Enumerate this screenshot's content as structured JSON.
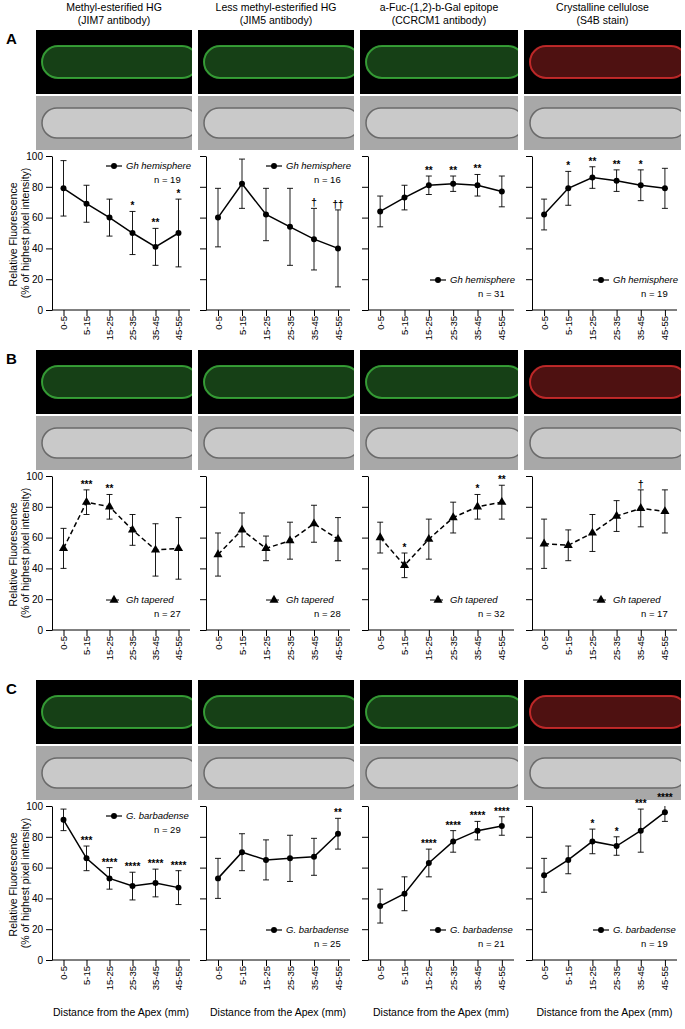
{
  "chart_data": [
    {
      "type": "line",
      "panel_label": "A",
      "title": "Methyl-esterified HG",
      "subtitle": "(JIM7 antibody)",
      "ylabel": "Relative Fluorescence (% of highest pixel intensity)",
      "annotation": "n = 19",
      "legend": "top-right",
      "tick_labels": true,
      "categories": [
        "0-5",
        "5-15",
        "15-25",
        "25-35",
        "35-45",
        "45-55"
      ],
      "ylim": [
        0,
        100
      ],
      "yticks": [
        0,
        20,
        40,
        60,
        80,
        100
      ],
      "series": [
        {
          "name": "Gh hemisphere",
          "color": "#000000",
          "marker": "circle",
          "line_style": "solid",
          "values": [
            79,
            69,
            60,
            50,
            41,
            50
          ],
          "errors": [
            18,
            12,
            12,
            14,
            12,
            22
          ],
          "significance": [
            null,
            null,
            null,
            "*",
            "**",
            "*"
          ]
        }
      ]
    },
    {
      "type": "line",
      "title": "Less methyl-esterified HG",
      "subtitle": "(JIM5 antibody)",
      "annotation": "n = 16",
      "legend": "top-right",
      "tick_labels": "x",
      "categories": [
        "0-5",
        "5-15",
        "15-25",
        "25-35",
        "35-45",
        "45-55"
      ],
      "ylim": [
        0,
        100
      ],
      "yticks": [
        0,
        20,
        40,
        60,
        80,
        100
      ],
      "series": [
        {
          "name": "Gh hemisphere",
          "color": "#000000",
          "marker": "circle",
          "line_style": "solid",
          "values": [
            60,
            82,
            62,
            54,
            46,
            40
          ],
          "errors": [
            19,
            16,
            17,
            25,
            20,
            25
          ],
          "significance": [
            null,
            null,
            null,
            null,
            "†",
            "††"
          ]
        }
      ]
    },
    {
      "type": "line",
      "title": "a-Fuc-(1,2)-b-Gal epitope",
      "subtitle": "(CCRCM1 antibody)",
      "annotation": "n = 31",
      "legend": "bottom-right",
      "tick_labels": "x",
      "categories": [
        "0-5",
        "5-15",
        "15-25",
        "25-35",
        "35-45",
        "45-55"
      ],
      "ylim": [
        0,
        100
      ],
      "yticks": [
        0,
        20,
        40,
        60,
        80,
        100
      ],
      "series": [
        {
          "name": "Gh hemisphere",
          "color": "#000000",
          "marker": "circle",
          "line_style": "solid",
          "values": [
            64,
            73,
            81,
            82,
            81,
            77
          ],
          "errors": [
            10,
            8,
            6,
            5,
            7,
            10
          ],
          "significance": [
            null,
            null,
            "**",
            "**",
            "**",
            null
          ]
        }
      ]
    },
    {
      "type": "line",
      "title": "Crystalline cellulose",
      "subtitle": "(S4B stain)",
      "annotation": "n = 19",
      "legend": "bottom-right",
      "tick_labels": "x",
      "categories": [
        "0-5",
        "5-15",
        "15-25",
        "25-35",
        "35-45",
        "45-55"
      ],
      "ylim": [
        0,
        100
      ],
      "yticks": [
        0,
        20,
        40,
        60,
        80,
        100
      ],
      "series": [
        {
          "name": "Gh hemisphere",
          "color": "#000000",
          "marker": "circle",
          "line_style": "solid",
          "values": [
            62,
            79,
            86,
            84,
            81,
            79
          ],
          "errors": [
            10,
            11,
            7,
            7,
            10,
            13
          ],
          "significance": [
            null,
            "*",
            "**",
            "**",
            "*",
            null
          ]
        }
      ]
    },
    {
      "type": "line",
      "panel_label": "B",
      "ylabel": "Relative Fluorescence (% of highest pixel intensity)",
      "annotation": "n = 27",
      "legend": "bottom-right",
      "tick_labels": true,
      "categories": [
        "0-5",
        "5-15",
        "15-25",
        "25-35",
        "35-45",
        "45-55"
      ],
      "ylim": [
        0,
        100
      ],
      "yticks": [
        0,
        20,
        40,
        60,
        80,
        100
      ],
      "series": [
        {
          "name": "Gh tapered",
          "color": "#000000",
          "marker": "triangle",
          "line_style": "dashed",
          "values": [
            53,
            83,
            80,
            65,
            52,
            53
          ],
          "errors": [
            13,
            8,
            8,
            10,
            17,
            20
          ],
          "significance": [
            null,
            "***",
            "**",
            null,
            null,
            null
          ]
        }
      ]
    },
    {
      "type": "line",
      "annotation": "n = 28",
      "legend": "bottom-right",
      "tick_labels": "x",
      "categories": [
        "0-5",
        "5-15",
        "15-25",
        "25-35",
        "35-45",
        "45-55"
      ],
      "ylim": [
        0,
        100
      ],
      "yticks": [
        0,
        20,
        40,
        60,
        80,
        100
      ],
      "series": [
        {
          "name": "Gh tapered",
          "color": "#000000",
          "marker": "triangle",
          "line_style": "dashed",
          "values": [
            49,
            65,
            53,
            58,
            69,
            59
          ],
          "errors": [
            14,
            11,
            8,
            12,
            12,
            14
          ],
          "significance": [
            null,
            null,
            null,
            null,
            null,
            null
          ]
        }
      ]
    },
    {
      "type": "line",
      "annotation": "n = 32",
      "legend": "bottom-right",
      "tick_labels": "x",
      "categories": [
        "0-5",
        "5-15",
        "15-25",
        "25-35",
        "35-45",
        "45-55"
      ],
      "ylim": [
        0,
        100
      ],
      "yticks": [
        0,
        20,
        40,
        60,
        80,
        100
      ],
      "series": [
        {
          "name": "Gh tapered",
          "color": "#000000",
          "marker": "triangle",
          "line_style": "dashed",
          "values": [
            60,
            42,
            59,
            73,
            80,
            83
          ],
          "errors": [
            10,
            8,
            13,
            10,
            8,
            11
          ],
          "significance": [
            null,
            "*",
            null,
            null,
            "*",
            "**"
          ]
        }
      ]
    },
    {
      "type": "line",
      "annotation": "n = 17",
      "legend": "bottom-right",
      "tick_labels": "x",
      "categories": [
        "0-5",
        "5-15",
        "15-25",
        "25-35",
        "35-45",
        "45-55"
      ],
      "ylim": [
        0,
        100
      ],
      "yticks": [
        0,
        20,
        40,
        60,
        80,
        100
      ],
      "series": [
        {
          "name": "Gh tapered",
          "color": "#000000",
          "marker": "triangle",
          "line_style": "dashed",
          "values": [
            56,
            55,
            63,
            74,
            79,
            77
          ],
          "errors": [
            16,
            10,
            12,
            10,
            12,
            14
          ],
          "significance": [
            null,
            null,
            null,
            null,
            "†",
            null
          ]
        }
      ]
    },
    {
      "type": "line",
      "panel_label": "C",
      "ylabel": "Relative Fluorescence (% of highest pixel intensity)",
      "xlabel": "Distance from the Apex (mm)",
      "annotation": "n = 29",
      "legend": "top-right",
      "tick_labels": true,
      "categories": [
        "0-5",
        "5-15",
        "15-25",
        "25-35",
        "35-45",
        "45-55"
      ],
      "ylim": [
        0,
        100
      ],
      "yticks": [
        0,
        20,
        40,
        60,
        80,
        100
      ],
      "series": [
        {
          "name": "G. barbadense",
          "color": "#000000",
          "marker": "circle",
          "line_style": "solid",
          "values": [
            91,
            66,
            53,
            48,
            50,
            47
          ],
          "errors": [
            7,
            8,
            7,
            9,
            9,
            11
          ],
          "significance": [
            null,
            "***",
            "****",
            "****",
            "****",
            "****"
          ]
        }
      ]
    },
    {
      "type": "line",
      "xlabel": "Distance from the Apex (mm)",
      "annotation": "n = 25",
      "legend": "bottom-right",
      "tick_labels": "x",
      "categories": [
        "0-5",
        "5-15",
        "15-25",
        "25-35",
        "35-45",
        "45-55"
      ],
      "ylim": [
        0,
        100
      ],
      "yticks": [
        0,
        20,
        40,
        60,
        80,
        100
      ],
      "series": [
        {
          "name": "G. barbadense",
          "color": "#000000",
          "marker": "circle",
          "line_style": "solid",
          "values": [
            53,
            70,
            65,
            66,
            67,
            82
          ],
          "errors": [
            13,
            12,
            13,
            15,
            12,
            10
          ],
          "significance": [
            null,
            null,
            null,
            null,
            null,
            "**"
          ]
        }
      ]
    },
    {
      "type": "line",
      "xlabel": "Distance from the Apex (mm)",
      "annotation": "n = 21",
      "legend": "bottom-right",
      "tick_labels": "x",
      "categories": [
        "0-5",
        "5-15",
        "15-25",
        "25-35",
        "35-45",
        "45-55"
      ],
      "ylim": [
        0,
        100
      ],
      "yticks": [
        0,
        20,
        40,
        60,
        80,
        100
      ],
      "series": [
        {
          "name": "G. barbadense",
          "color": "#000000",
          "marker": "circle",
          "line_style": "solid",
          "values": [
            35,
            43,
            63,
            77,
            84,
            87
          ],
          "errors": [
            11,
            11,
            9,
            7,
            6,
            6
          ],
          "significance": [
            null,
            null,
            "****",
            "****",
            "****",
            "****"
          ]
        }
      ]
    },
    {
      "type": "line",
      "xlabel": "Distance from the Apex (mm)",
      "annotation": "n = 19",
      "legend": "bottom-right",
      "tick_labels": "x",
      "categories": [
        "0-5",
        "5-15",
        "15-25",
        "25-35",
        "35-45",
        "45-55"
      ],
      "ylim": [
        0,
        100
      ],
      "yticks": [
        0,
        20,
        40,
        60,
        80,
        100
      ],
      "series": [
        {
          "name": "G. barbadense",
          "color": "#000000",
          "marker": "circle",
          "line_style": "solid",
          "values": [
            55,
            65,
            77,
            74,
            84,
            96
          ],
          "errors": [
            11,
            9,
            8,
            6,
            14,
            6
          ],
          "significance": [
            null,
            null,
            "*",
            "*",
            "***",
            "****"
          ]
        }
      ]
    }
  ]
}
